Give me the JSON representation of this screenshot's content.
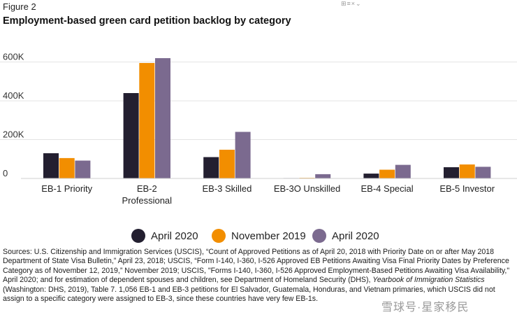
{
  "figure_label": "Figure 2",
  "title": "Employment-based green card petition backlog by category",
  "top_icon": "⊞≡×⌄",
  "legend": [
    {
      "label": "April 2020",
      "color": "#231f30"
    },
    {
      "label": "November 2019",
      "color": "#f28e00"
    },
    {
      "label": "April 2020",
      "color": "#7b6a8f"
    }
  ],
  "chart_data": {
    "type": "bar",
    "title": "Employment-based green card petition backlog by category",
    "categories": [
      "EB-1 Priority",
      "EB-2 Professional",
      "EB-3 Skilled",
      "EB-3O Unskilled",
      "EB-4 Special",
      "EB-5 Investor"
    ],
    "category_lines": [
      [
        "EB-1 Priority"
      ],
      [
        "EB-2",
        "Professional"
      ],
      [
        "EB-3 Skilled"
      ],
      [
        "EB-3O Unskilled"
      ],
      [
        "EB-4 Special"
      ],
      [
        "EB-5 Investor"
      ]
    ],
    "series": [
      {
        "name": "April 2020",
        "color": "#231f30",
        "values": [
          130000,
          440000,
          110000,
          2000,
          25000,
          58000
        ]
      },
      {
        "name": "November 2019",
        "color": "#f28e00",
        "values": [
          105000,
          595000,
          148000,
          3000,
          45000,
          72000
        ]
      },
      {
        "name": "April 2020",
        "color": "#7b6a8f",
        "values": [
          92000,
          620000,
          240000,
          22000,
          70000,
          60000
        ]
      }
    ],
    "yticks": [
      0,
      200000,
      400000,
      600000
    ],
    "ytick_labels": [
      "0",
      "200K",
      "400K",
      "600K"
    ],
    "ylim": [
      0,
      660000
    ],
    "xlabel": "",
    "ylabel": ""
  },
  "sources": {
    "part1": "Sources: U.S. Citizenship and Immigration Services (USCIS), “Count of Approved Petitions as of April 20, 2018 with Priority Date on or after May 2018 Department of State Visa Bulletin,” April 23, 2018; USCIS, “Form I-140, I-360, I-526 Approved EB Petitions Awaiting Visa Final Priority Dates by Preference Category as of November 12, 2019,” November 2019; USCIS, \"Forms I-140, I-360, I-526 Approved Employment-Based Petitions Awaiting Visa Availability,\" April 2020; and for estimation of dependent spouses and children, see Department of Homeland Security (DHS), ",
    "italic": "Yearbook of Immigration Statistics",
    "part2": " (Washington: DHS, 2019), Table 7. 1,056 EB-1 and EB-3 petitions for El Salvador, Guatemala, Honduras, and Vietnam primaries, which USCIS did not assign to a specific category were assigned to EB-3, since these countries have very few EB-1s."
  },
  "watermark": "雪球号·星家移民"
}
